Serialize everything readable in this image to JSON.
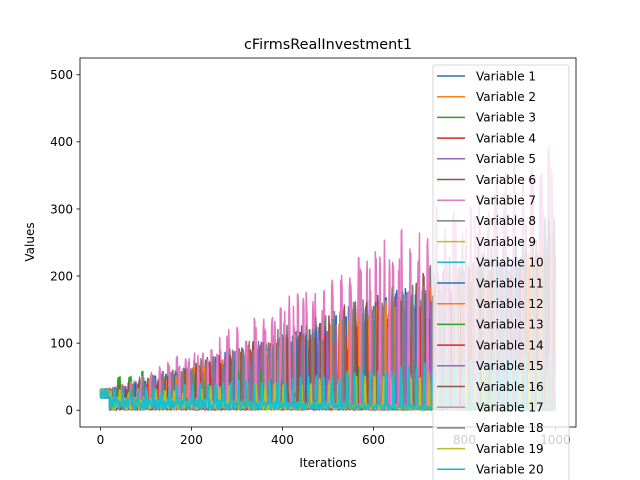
{
  "chart_data": {
    "type": "line",
    "title": "cFirmsRealInvestment1",
    "xlabel": "Iterations",
    "ylabel": "Values",
    "xlim": [
      -45,
      1045
    ],
    "ylim": [
      -25,
      525
    ],
    "xticks": [
      0,
      200,
      400,
      600,
      800,
      1000
    ],
    "yticks": [
      0,
      100,
      200,
      300,
      400,
      500
    ],
    "legend_position": "top-right",
    "x_points": 1000,
    "series": [
      {
        "name": "Variable 1",
        "color": "#1f77b4",
        "peak_start": 30,
        "peak_end": 280,
        "spacing": 21,
        "phase": 1
      },
      {
        "name": "Variable 2",
        "color": "#ff7f0e",
        "peak_start": 30,
        "peak_end": 250,
        "spacing": 23,
        "phase": 5
      },
      {
        "name": "Variable 3",
        "color": "#2ca02c",
        "peak_start": 60,
        "peak_end": 90,
        "spacing": 25,
        "phase": 9
      },
      {
        "name": "Variable 4",
        "color": "#d62728",
        "peak_start": 30,
        "peak_end": 260,
        "spacing": 22,
        "phase": 3
      },
      {
        "name": "Variable 5",
        "color": "#9467bd",
        "peak_start": 30,
        "peak_end": 270,
        "spacing": 20,
        "phase": 7
      },
      {
        "name": "Variable 6",
        "color": "#8c564b",
        "peak_start": 30,
        "peak_end": 280,
        "spacing": 24,
        "phase": 2
      },
      {
        "name": "Variable 7",
        "color": "#e377c2",
        "peak_start": 30,
        "peak_end": 420,
        "spacing": 19,
        "phase": 4
      },
      {
        "name": "Variable 8",
        "color": "#7f7f7f",
        "peak_start": 30,
        "peak_end": 300,
        "spacing": 21,
        "phase": 11
      },
      {
        "name": "Variable 9",
        "color": "#bcbd22",
        "peak_start": 30,
        "peak_end": 60,
        "spacing": 26,
        "phase": 6
      },
      {
        "name": "Variable 10",
        "color": "#17becf",
        "peak_start": 30,
        "peak_end": 60,
        "spacing": 18,
        "phase": 8
      },
      {
        "name": "Variable 11",
        "color": "#1f77b4",
        "peak_start": 30,
        "peak_end": 270,
        "spacing": 22,
        "phase": 12
      },
      {
        "name": "Variable 12",
        "color": "#ff7f0e",
        "peak_start": 30,
        "peak_end": 260,
        "spacing": 20,
        "phase": 14
      },
      {
        "name": "Variable 13",
        "color": "#2ca02c",
        "peak_start": 50,
        "peak_end": 80,
        "spacing": 24,
        "phase": 10
      },
      {
        "name": "Variable 14",
        "color": "#d62728",
        "peak_start": 30,
        "peak_end": 240,
        "spacing": 23,
        "phase": 13
      },
      {
        "name": "Variable 15",
        "color": "#9467bd",
        "peak_start": 30,
        "peak_end": 260,
        "spacing": 19,
        "phase": 15
      },
      {
        "name": "Variable 16",
        "color": "#8c564b",
        "peak_start": 30,
        "peak_end": 290,
        "spacing": 25,
        "phase": 16
      },
      {
        "name": "Variable 17",
        "color": "#e377c2",
        "peak_start": 30,
        "peak_end": 380,
        "spacing": 21,
        "phase": 17
      },
      {
        "name": "Variable 18",
        "color": "#7f7f7f",
        "peak_start": 30,
        "peak_end": 280,
        "spacing": 22,
        "phase": 18
      },
      {
        "name": "Variable 19",
        "color": "#bcbd22",
        "peak_start": 30,
        "peak_end": 70,
        "spacing": 20,
        "phase": 19
      },
      {
        "name": "Variable 20",
        "color": "#17becf",
        "peak_start": 30,
        "peak_end": 90,
        "spacing": 17,
        "phase": 20
      }
    ]
  }
}
